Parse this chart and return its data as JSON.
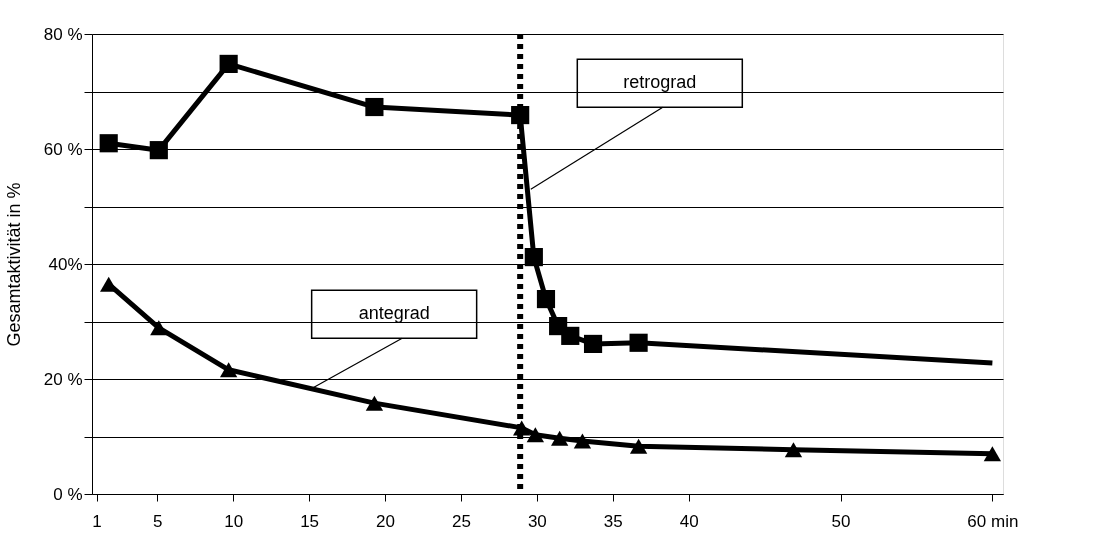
{
  "chart_data": {
    "type": "line",
    "ylabel": "Gesamtaktivität in %",
    "xlim": [
      0.7,
      60.7
    ],
    "xticks": [
      1,
      5,
      10,
      15,
      20,
      25,
      30,
      35,
      40,
      50,
      {
        "value": 60,
        "label": "60 min"
      }
    ],
    "ylim": [
      0,
      80
    ],
    "yticks": [
      {
        "value": 0,
        "label": "0 %"
      },
      {
        "value": 10,
        "label": null
      },
      {
        "value": 20,
        "label": "20 %"
      },
      {
        "value": 30,
        "label": null
      },
      {
        "value": 40,
        "label": "40%"
      },
      {
        "value": 50,
        "label": null
      },
      {
        "value": 60,
        "label": "60 %"
      },
      {
        "value": 70,
        "label": null
      },
      {
        "value": 80,
        "label": "80 %"
      }
    ],
    "grid": "y",
    "line_style": "solid",
    "series": [
      {
        "color": "#000000",
        "marker": "square",
        "x": [
          1.8,
          5.1,
          9.7,
          19.3,
          28.9,
          29.8,
          30.6,
          31.4,
          32.2,
          33.7,
          36.7
        ],
        "values": [
          61.0,
          59.8,
          74.8,
          67.3,
          65.9,
          41.2,
          33.9,
          29.2,
          27.5,
          26.1,
          26.3
        ]
      },
      {
        "color": "#000000",
        "marker": "none",
        "x": [
          36.7,
          60
        ],
        "values": [
          26.3,
          22.8
        ]
      },
      {
        "color": "#000000",
        "marker": "triangle",
        "x": [
          1.8,
          5.1,
          9.7,
          19.3,
          29.0,
          29.9,
          31.5,
          33.0,
          36.7,
          46.9,
          60
        ],
        "values": [
          36.5,
          28.9,
          21.6,
          15.8,
          11.5,
          10.3,
          9.7,
          9.2,
          8.3,
          7.7,
          7.0
        ]
      }
    ],
    "ref_lines": [
      {
        "axis": "x",
        "value": 28.9,
        "color": "#000000",
        "line_style": "dotted"
      }
    ],
    "annotations": [
      {
        "text": "retrograd",
        "x": 29.6,
        "y": 53
      },
      {
        "text": "antegrad",
        "x": 15.2,
        "y": 18.4
      }
    ]
  }
}
